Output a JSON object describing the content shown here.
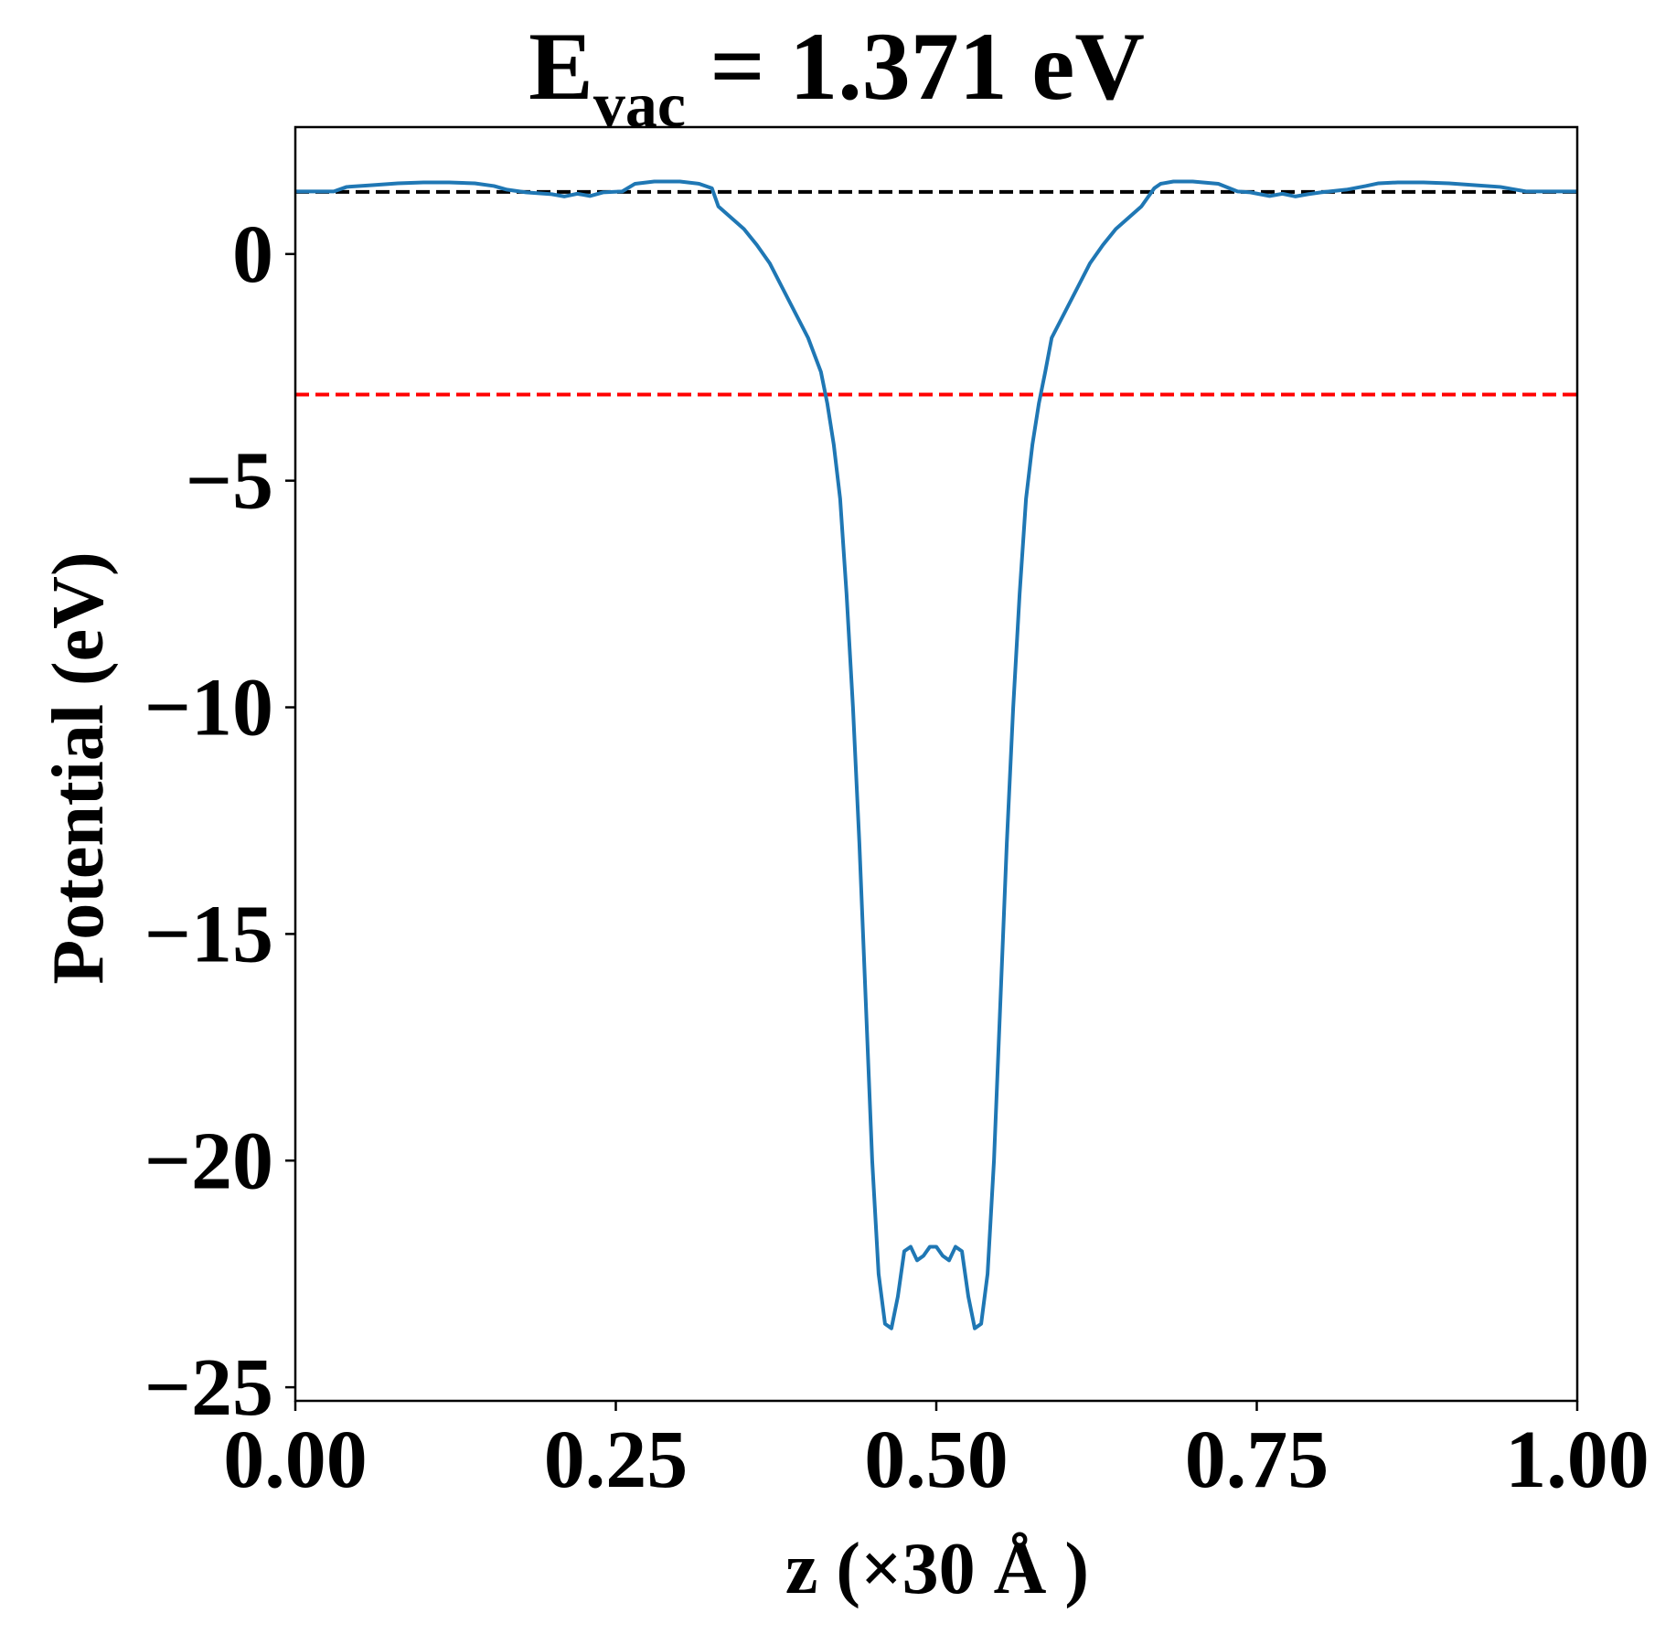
{
  "chart_data": {
    "type": "line",
    "title": {
      "main": "E",
      "subscript": "vac",
      "rest": " = 1.371 eV"
    },
    "xlabel": "z (×30 Å )",
    "ylabel": "Potential (eV)",
    "xlim": [
      0.0,
      1.0
    ],
    "ylim": [
      -25.3,
      2.8
    ],
    "xticks": [
      0.0,
      0.25,
      0.5,
      0.75,
      1.0
    ],
    "xtick_labels": [
      "0.00",
      "0.25",
      "0.50",
      "0.75",
      "1.00"
    ],
    "yticks": [
      0,
      -5,
      -10,
      -15,
      -20,
      -25
    ],
    "ytick_labels": [
      "0",
      "−5",
      "−10",
      "−15",
      "−20",
      "−25"
    ],
    "grid": false,
    "reference_lines": [
      {
        "y": 1.371,
        "color": "#000000",
        "style": "dashed"
      },
      {
        "y": -3.1,
        "color": "#ff0000",
        "style": "dashed"
      }
    ],
    "series": [
      {
        "color": "#1f77b4",
        "x": [
          0.0,
          0.03,
          0.04,
          0.06,
          0.08,
          0.1,
          0.12,
          0.14,
          0.155,
          0.165,
          0.18,
          0.2,
          0.21,
          0.22,
          0.23,
          0.24,
          0.255,
          0.265,
          0.28,
          0.3,
          0.315,
          0.325,
          0.33,
          0.34,
          0.35,
          0.36,
          0.37,
          0.38,
          0.39,
          0.4,
          0.41,
          0.415,
          0.42,
          0.425,
          0.43,
          0.435,
          0.44,
          0.445,
          0.45,
          0.455,
          0.46,
          0.465,
          0.47,
          0.475,
          0.48,
          0.485,
          0.49,
          0.495,
          0.5,
          0.505,
          0.51,
          0.515,
          0.52,
          0.525,
          0.53,
          0.535,
          0.54,
          0.545,
          0.55,
          0.555,
          0.56,
          0.565,
          0.57,
          0.575,
          0.58,
          0.585,
          0.59,
          0.6,
          0.61,
          0.62,
          0.63,
          0.64,
          0.65,
          0.66,
          0.67,
          0.675,
          0.685,
          0.7,
          0.72,
          0.735,
          0.745,
          0.76,
          0.77,
          0.78,
          0.79,
          0.8,
          0.82,
          0.835,
          0.845,
          0.86,
          0.88,
          0.9,
          0.92,
          0.94,
          0.96,
          0.97,
          1.0
        ],
        "y": [
          1.38,
          1.38,
          1.48,
          1.52,
          1.56,
          1.58,
          1.58,
          1.56,
          1.5,
          1.42,
          1.36,
          1.32,
          1.27,
          1.33,
          1.28,
          1.36,
          1.38,
          1.55,
          1.6,
          1.6,
          1.55,
          1.45,
          1.05,
          0.8,
          0.55,
          0.2,
          -0.2,
          -0.75,
          -1.3,
          -1.85,
          -2.6,
          -3.3,
          -4.2,
          -5.4,
          -7.5,
          -10.0,
          -13.0,
          -16.5,
          -20.0,
          -22.5,
          -23.6,
          -23.7,
          -23.0,
          -22.0,
          -21.9,
          -22.2,
          -22.1,
          -21.9,
          -21.9,
          -22.1,
          -22.2,
          -21.9,
          -22.0,
          -23.0,
          -23.7,
          -23.6,
          -22.5,
          -20.0,
          -16.5,
          -13.0,
          -10.0,
          -7.5,
          -5.4,
          -4.2,
          -3.3,
          -2.6,
          -1.85,
          -1.3,
          -0.75,
          -0.2,
          0.2,
          0.55,
          0.8,
          1.05,
          1.45,
          1.55,
          1.6,
          1.6,
          1.55,
          1.38,
          1.36,
          1.28,
          1.33,
          1.27,
          1.32,
          1.36,
          1.42,
          1.5,
          1.56,
          1.58,
          1.58,
          1.56,
          1.52,
          1.48,
          1.38,
          1.38,
          1.38
        ]
      }
    ]
  }
}
